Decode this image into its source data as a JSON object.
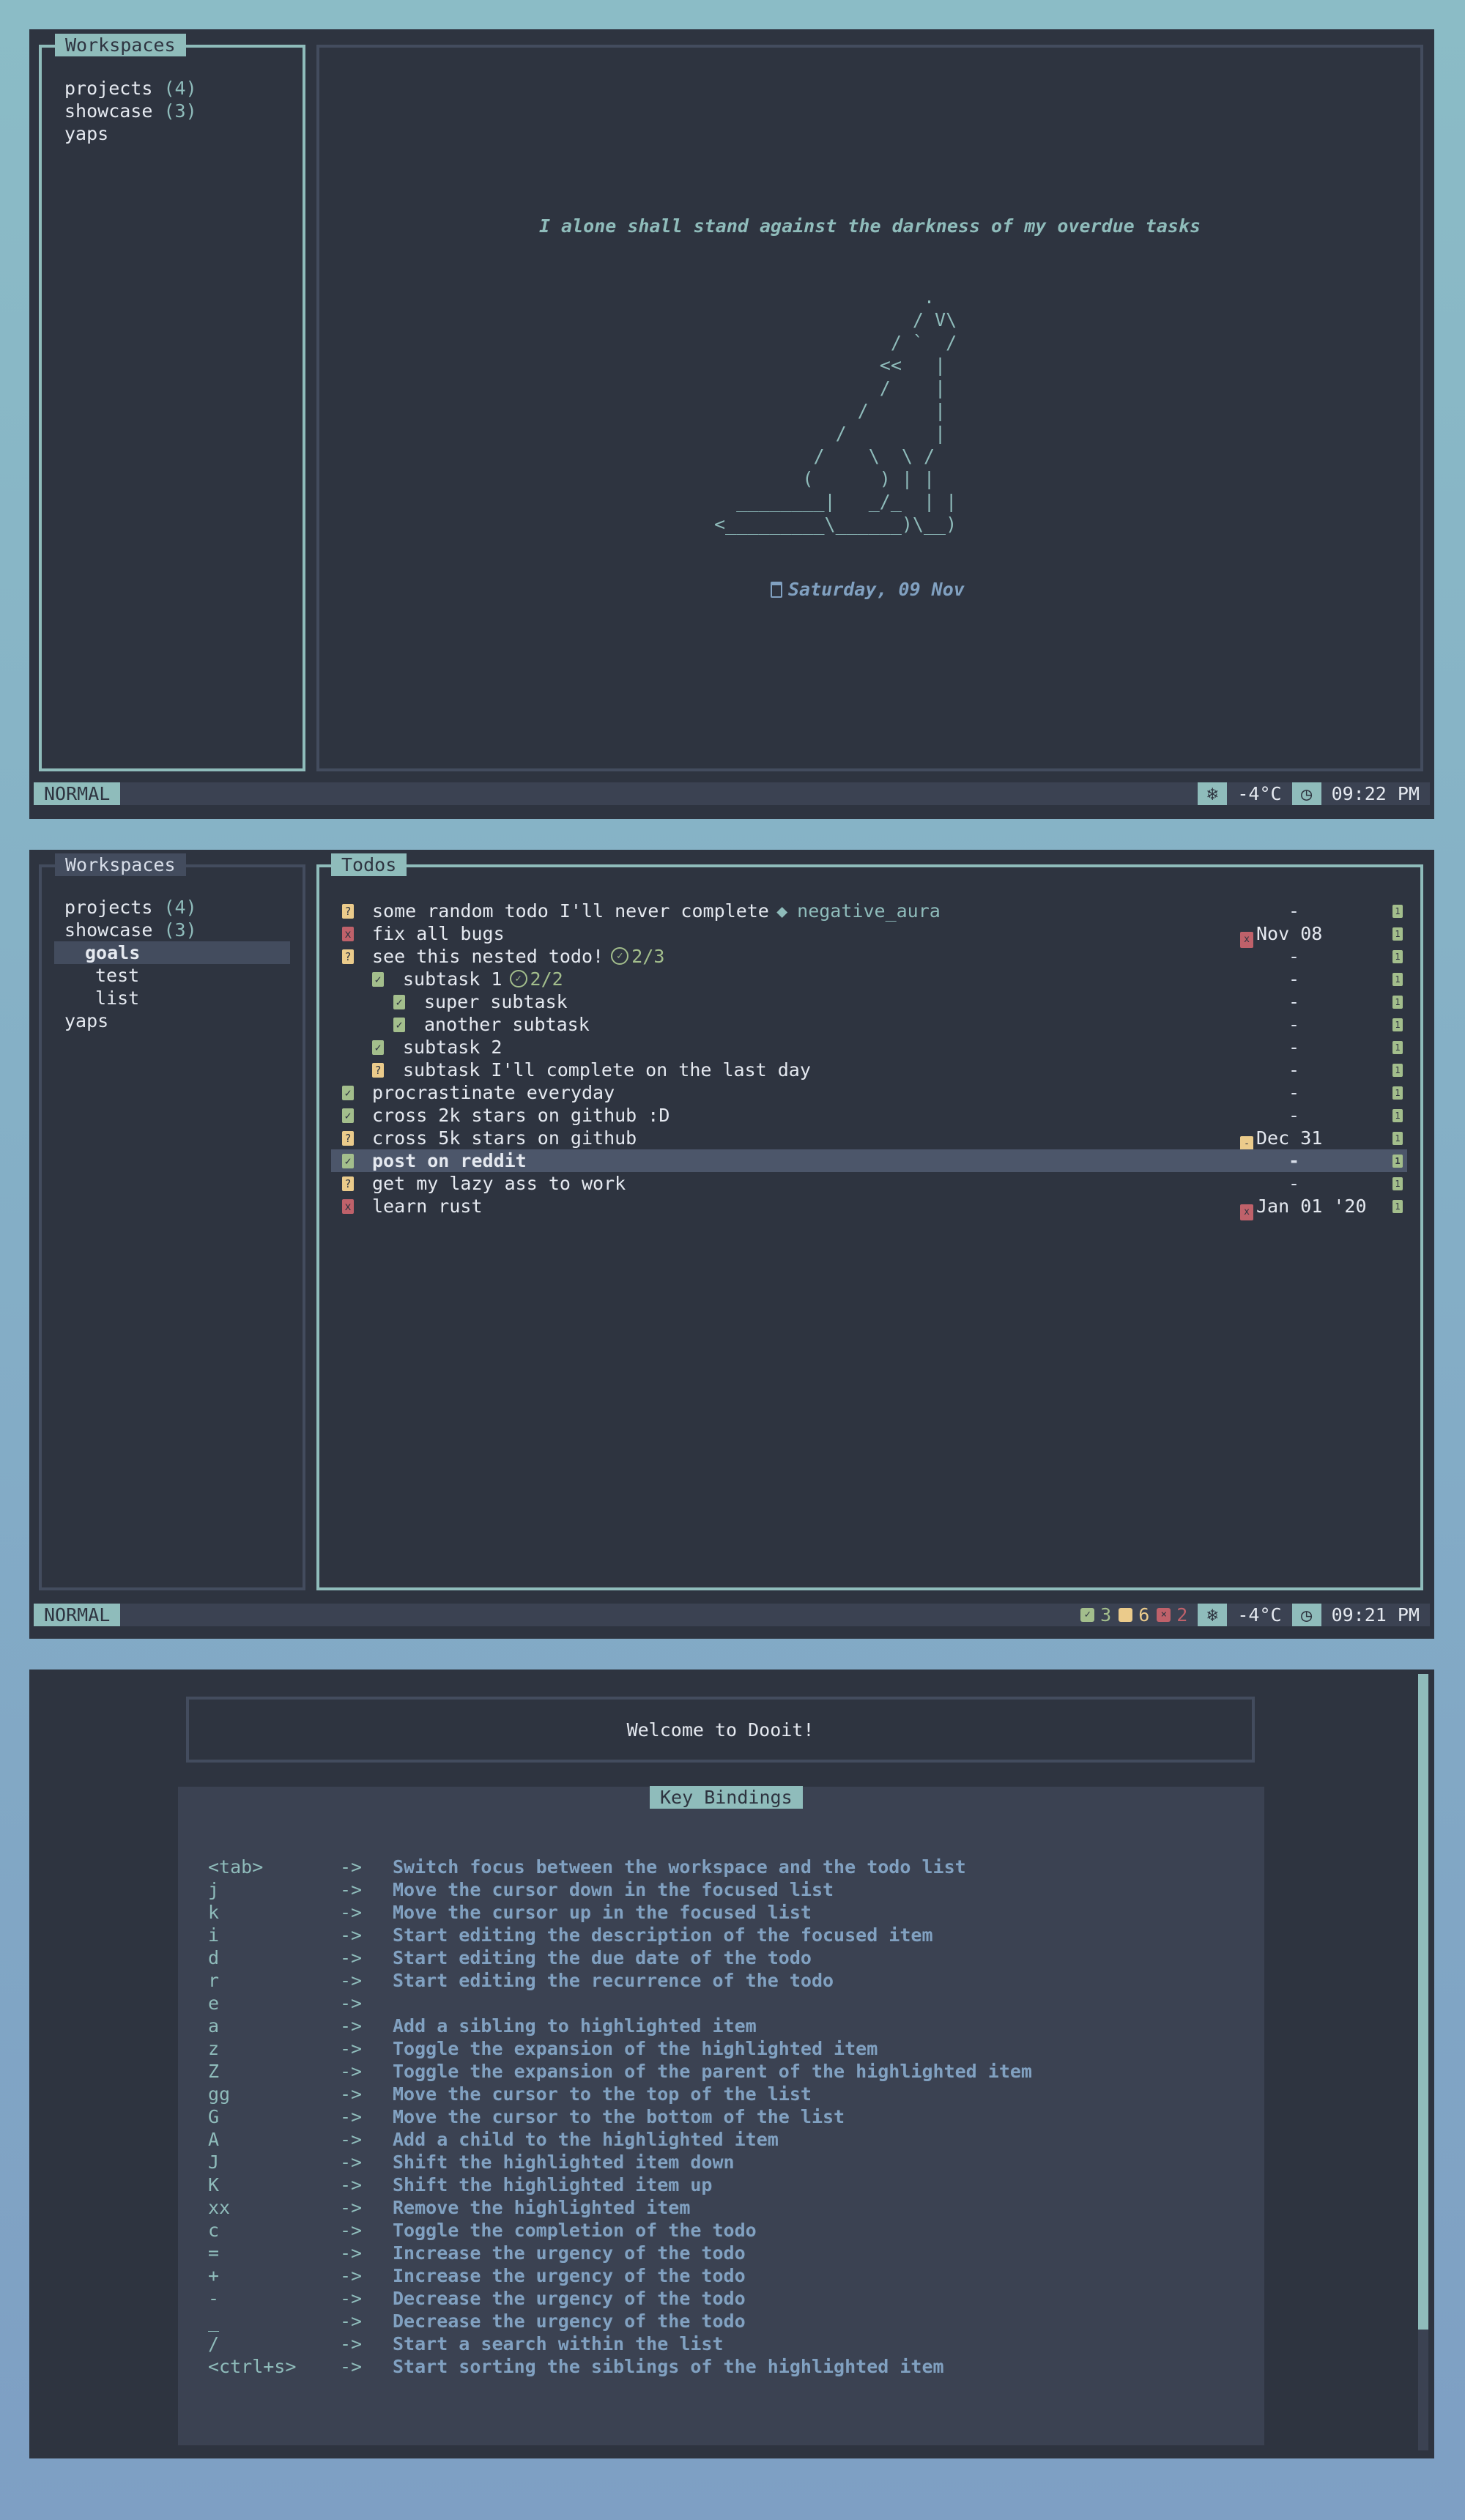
{
  "colors": {
    "accent": "#8fbcbb",
    "background": "#2e3440",
    "done": "#a3be8c",
    "pending": "#ebcb8b",
    "overdue": "#bf616a",
    "description": "#81a1c1"
  },
  "screen1": {
    "workspaces_title": "Workspaces",
    "workspaces": [
      {
        "name": "projects",
        "count": "(4)"
      },
      {
        "name": "showcase",
        "count": "(3)"
      },
      {
        "name": "yaps",
        "count": ""
      }
    ],
    "quote": "I alone shall stand against the darkness of my overdue tasks",
    "art": [
      "                   .",
      "                  / V\\",
      "                / `  /",
      "               <<   |",
      "               /    |",
      "             /      |",
      "           /        |",
      "         /    \\  \\ /",
      "        (      ) | |",
      "  ________|   _/_  | |",
      "<_________\\______)\\__)"
    ],
    "date": "Saturday, 09 Nov",
    "status": {
      "mode": "NORMAL",
      "temperature": "-4°C",
      "time": "09:22 PM",
      "weather_icon": "snowflake-icon",
      "clock_icon": "clock-icon"
    }
  },
  "screen2": {
    "workspaces_title": "Workspaces",
    "workspaces": [
      {
        "name": "projects",
        "count": "(4)",
        "level": 0
      },
      {
        "name": "showcase",
        "count": "(3)",
        "level": 0
      },
      {
        "name": "goals",
        "count": "",
        "level": 1,
        "selected": true
      },
      {
        "name": "test",
        "count": "",
        "level": 1
      },
      {
        "name": "list",
        "count": "",
        "level": 1
      },
      {
        "name": "yaps",
        "count": "",
        "level": 0
      }
    ],
    "todos_title": "Todos",
    "todos": [
      {
        "status": "pending",
        "level": 0,
        "text": "some random todo I'll never complete",
        "tag": "negative_aura",
        "due": "-",
        "urgency": "1"
      },
      {
        "status": "overdue",
        "level": 0,
        "text": "fix all bugs",
        "due": "Nov 08",
        "due_state": "overdue",
        "urgency": "1"
      },
      {
        "status": "pending",
        "level": 0,
        "text": "see this nested todo!",
        "progress": "2/3",
        "due": "-",
        "urgency": "1"
      },
      {
        "status": "done",
        "level": 1,
        "text": "subtask 1",
        "progress": "2/2",
        "due": "-",
        "urgency": "1"
      },
      {
        "status": "done",
        "level": 2,
        "text": "super subtask",
        "due": "-",
        "urgency": "1"
      },
      {
        "status": "done",
        "level": 2,
        "text": "another subtask",
        "due": "-",
        "urgency": "1"
      },
      {
        "status": "done",
        "level": 1,
        "text": "subtask 2",
        "due": "-",
        "urgency": "1"
      },
      {
        "status": "pending",
        "level": 1,
        "text": "subtask I'll complete on the last day",
        "due": "-",
        "urgency": "1"
      },
      {
        "status": "done",
        "level": 0,
        "text": "procrastinate everyday",
        "due": "-",
        "urgency": "1"
      },
      {
        "status": "done",
        "level": 0,
        "text": "cross 2k stars on github :D",
        "due": "-",
        "urgency": "1"
      },
      {
        "status": "pending",
        "level": 0,
        "text": "cross 5k stars on github",
        "due": "Dec 31",
        "due_state": "pending",
        "urgency": "1"
      },
      {
        "status": "done",
        "level": 0,
        "text": "post on reddit",
        "due": "-",
        "urgency": "1",
        "highlighted": true
      },
      {
        "status": "pending",
        "level": 0,
        "text": "get my lazy ass to work",
        "due": "-",
        "urgency": "1"
      },
      {
        "status": "overdue",
        "level": 0,
        "text": "learn rust",
        "due": "Jan 01 '20",
        "due_state": "overdue",
        "urgency": "1"
      }
    ],
    "status": {
      "mode": "NORMAL",
      "done_count": "3",
      "pending_count": "6",
      "overdue_count": "2",
      "temperature": "-4°C",
      "time": "09:21 PM"
    }
  },
  "screen3": {
    "welcome": "Welcome to Dooit!",
    "bindings_title": "Key Bindings",
    "arrow": "->",
    "bindings": [
      {
        "key": "<tab>",
        "desc": "Switch focus between the workspace and the todo list"
      },
      {
        "key": "j",
        "desc": "Move the cursor down in the focused list"
      },
      {
        "key": "k",
        "desc": "Move the cursor up in the focused list"
      },
      {
        "key": "i",
        "desc": "Start editing the description of the focused item"
      },
      {
        "key": "d",
        "desc": "Start editing the due date of the todo"
      },
      {
        "key": "r",
        "desc": "Start editing the recurrence of the todo"
      },
      {
        "key": "e",
        "desc": ""
      },
      {
        "key": "a",
        "desc": "Add a sibling to highlighted item"
      },
      {
        "key": "z",
        "desc": "Toggle the expansion of the highlighted item"
      },
      {
        "key": "Z",
        "desc": "Toggle the expansion of the parent of the highlighted item"
      },
      {
        "key": "gg",
        "desc": "Move the cursor to the top of the list"
      },
      {
        "key": "G",
        "desc": "Move the cursor to the bottom of the list"
      },
      {
        "key": "A",
        "desc": "Add a child to the highlighted item"
      },
      {
        "key": "J",
        "desc": "Shift the highlighted item down"
      },
      {
        "key": "K",
        "desc": "Shift the highlighted item up"
      },
      {
        "key": "xx",
        "desc": "Remove the highlighted item"
      },
      {
        "key": "c",
        "desc": "Toggle the completion of the todo"
      },
      {
        "key": "=",
        "desc": "Increase the urgency of the todo"
      },
      {
        "key": "+",
        "desc": "Increase the urgency of the todo"
      },
      {
        "key": "-",
        "desc": "Decrease the urgency of the todo"
      },
      {
        "key": "_",
        "desc": "Decrease the urgency of the todo"
      },
      {
        "key": "/",
        "desc": "Start a search within the list"
      },
      {
        "key": "<ctrl+s>",
        "desc": "Start sorting the siblings of the highlighted item"
      }
    ],
    "scroll_position": 0
  }
}
